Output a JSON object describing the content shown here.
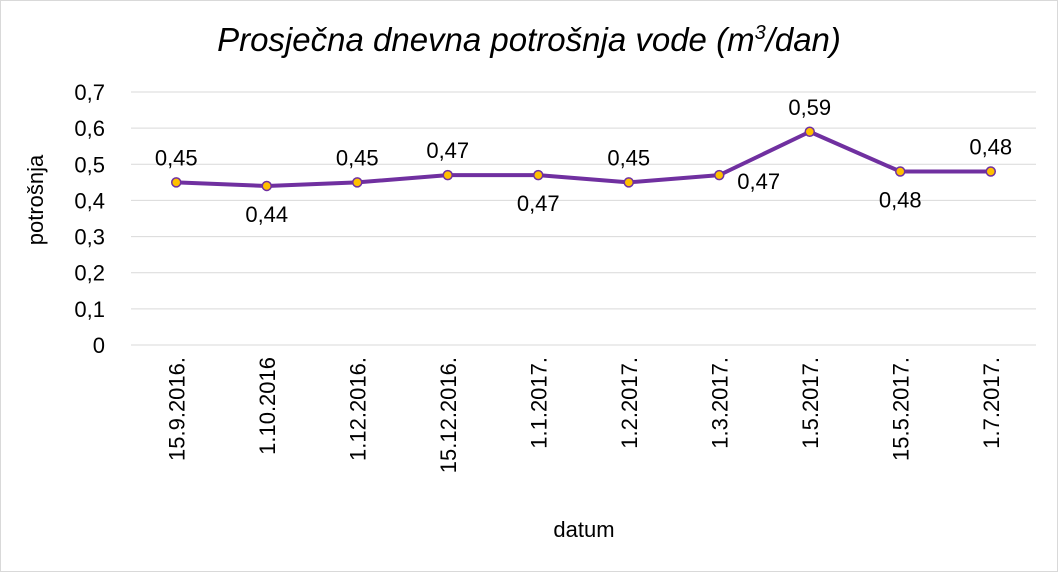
{
  "chart_data": {
    "type": "line",
    "title": "Prosječna dnevna potrošnja vode (m",
    "title_superscript": "3",
    "title_suffix": "/dan)",
    "xlabel": "datum",
    "ylabel": "potrošnja",
    "categories": [
      "15.9.2016.",
      "1.10.2016",
      "1.12.2016.",
      "15.12.2016.",
      "1.1.2017.",
      "1.2.2017.",
      "1.3.2017.",
      "1.5.2017.",
      "15.5.2017.",
      "1.7.2017."
    ],
    "values": [
      0.45,
      0.44,
      0.45,
      0.47,
      0.47,
      0.45,
      0.47,
      0.59,
      0.48,
      0.48
    ],
    "value_labels": [
      "0,45",
      "0,44",
      "0,45",
      "0,47",
      "0,47",
      "0,45",
      "0,47",
      "0,59",
      "0,48",
      "0,48"
    ],
    "label_positions": [
      "above",
      "below",
      "above",
      "above",
      "below",
      "above",
      "below-right",
      "above",
      "below",
      "above"
    ],
    "ylim": [
      0,
      0.7
    ],
    "yticks": [
      0,
      0.1,
      0.2,
      0.3,
      0.4,
      0.5,
      0.6,
      0.7
    ],
    "ytick_labels": [
      "0",
      "0,1",
      "0,2",
      "0,3",
      "0,4",
      "0,5",
      "0,6",
      "0,7"
    ],
    "grid": true,
    "legend": "none",
    "colors": {
      "line": "#7030a0",
      "marker_fill": "#ffc000",
      "marker_edge": "#7030a0",
      "grid": "#d9d9d9"
    }
  }
}
